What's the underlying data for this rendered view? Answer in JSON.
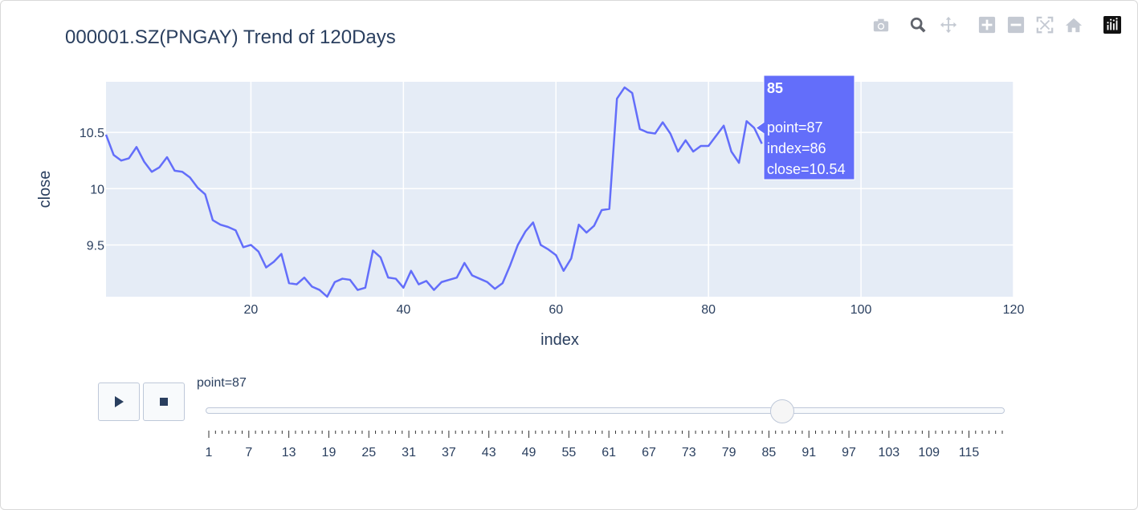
{
  "chart_data": {
    "type": "line",
    "title": "000001.SZ(PNGAY) Trend of 120Days",
    "xlabel": "index",
    "ylabel": "close",
    "xlim": [
      1,
      120
    ],
    "ylim": [
      9.04,
      10.95
    ],
    "x_ticks": [
      20,
      40,
      60,
      80,
      100,
      120
    ],
    "y_ticks": [
      9.5,
      10,
      10.5
    ],
    "y_tick_labels": [
      "9.5",
      "10",
      "10.5"
    ],
    "line_color": "#636efa",
    "plot_bg": "#e5ecf6",
    "grid": true,
    "series": [
      {
        "x": [
          1,
          2,
          3,
          4,
          5,
          6,
          7,
          8,
          9,
          10,
          11,
          12,
          13,
          14,
          15,
          16,
          17,
          18,
          19,
          20,
          21,
          22,
          23,
          24,
          25,
          26,
          27,
          28,
          29,
          30,
          31,
          32,
          33,
          34,
          35,
          36,
          37,
          38,
          39,
          40,
          41,
          42,
          43,
          44,
          45,
          46,
          47,
          48,
          49,
          50,
          51,
          52,
          53,
          54,
          55,
          56,
          57,
          58,
          59,
          60,
          61,
          62,
          63,
          64,
          65,
          66,
          67,
          68,
          69,
          70,
          71,
          72,
          73,
          74,
          75,
          76,
          77,
          78,
          79,
          80,
          81,
          82,
          83,
          84,
          85,
          86,
          87
        ],
        "y": [
          10.48,
          10.3,
          10.25,
          10.27,
          10.37,
          10.24,
          10.15,
          10.19,
          10.28,
          10.16,
          10.15,
          10.1,
          10.01,
          9.95,
          9.72,
          9.68,
          9.66,
          9.63,
          9.48,
          9.5,
          9.44,
          9.3,
          9.35,
          9.42,
          9.16,
          9.15,
          9.21,
          9.13,
          9.1,
          9.04,
          9.17,
          9.2,
          9.19,
          9.1,
          9.12,
          9.45,
          9.39,
          9.21,
          9.2,
          9.12,
          9.27,
          9.15,
          9.18,
          9.1,
          9.17,
          9.19,
          9.21,
          9.34,
          9.23,
          9.2,
          9.17,
          9.11,
          9.16,
          9.32,
          9.5,
          9.62,
          9.7,
          9.5,
          9.46,
          9.41,
          9.27,
          9.38,
          9.68,
          9.61,
          9.67,
          9.81,
          9.82,
          10.8,
          10.9,
          10.85,
          10.53,
          10.5,
          10.49,
          10.59,
          10.49,
          10.33,
          10.43,
          10.33,
          10.38,
          10.38,
          10.47,
          10.56,
          10.33,
          10.23,
          10.6,
          10.54,
          10.4
        ]
      }
    ]
  },
  "hover": {
    "header": "85",
    "line1": "point=87",
    "line2": "index=86",
    "line3": "close=10.54"
  },
  "slider": {
    "label": "point=87",
    "value": 87,
    "min": 1,
    "max": 120,
    "tick_labels": [
      "1",
      "7",
      "13",
      "19",
      "25",
      "31",
      "37",
      "43",
      "49",
      "55",
      "61",
      "67",
      "73",
      "79",
      "85",
      "91",
      "97",
      "103",
      "109",
      "115"
    ]
  },
  "modebar": {
    "icons": [
      "camera-icon",
      "zoom-icon",
      "pan-icon",
      "zoom-in-icon",
      "zoom-out-icon",
      "autoscale-icon",
      "reset-axes-icon",
      "plotly-logo-icon"
    ]
  }
}
